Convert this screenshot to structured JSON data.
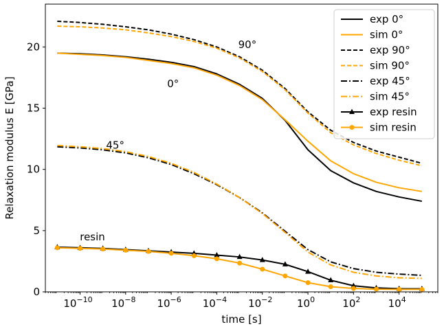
{
  "chart_data": {
    "type": "line",
    "xlabel": "time [s]",
    "ylabel": "Relaxation modulus E [GPa]",
    "x_scale": "log",
    "xlim": [
      3e-12,
      500000.0
    ],
    "ylim": [
      0,
      23.5
    ],
    "x_ticks": [
      {
        "value": 1e-10,
        "base": "10",
        "exp": "−10"
      },
      {
        "value": 1e-08,
        "base": "10",
        "exp": "−8"
      },
      {
        "value": 1e-06,
        "base": "10",
        "exp": "−6"
      },
      {
        "value": 0.0001,
        "base": "10",
        "exp": "−4"
      },
      {
        "value": 0.01,
        "base": "10",
        "exp": "−2"
      },
      {
        "value": 1,
        "base": "10",
        "exp": "0"
      },
      {
        "value": 100,
        "base": "10",
        "exp": "2"
      },
      {
        "value": 10000,
        "base": "10",
        "exp": "4"
      }
    ],
    "y_ticks": [
      0,
      5,
      10,
      15,
      20
    ],
    "grid": false,
    "legend_position": "top-right",
    "colors": {
      "exp": "#000000",
      "sim": "#FFA500"
    },
    "annotations": [
      {
        "text": "90°",
        "x": 0.0022,
        "y": 19.9
      },
      {
        "text": "0°",
        "x": 1.2e-06,
        "y": 16.7
      },
      {
        "text": "45°",
        "x": 3.5e-09,
        "y": 11.7
      },
      {
        "text": "resin",
        "x": 3.5e-10,
        "y": 4.2
      }
    ],
    "series": [
      {
        "name": "exp 0°",
        "color": "#000000",
        "dash": "solid",
        "marker": "none",
        "x": [
          1e-11,
          1e-10,
          1e-09,
          1e-08,
          1e-07,
          1e-06,
          1e-05,
          0.0001,
          0.001,
          0.01,
          0.1,
          1,
          10,
          100,
          1000,
          10000,
          100000
        ],
        "y": [
          19.5,
          19.45,
          19.35,
          19.2,
          19.0,
          18.75,
          18.4,
          17.8,
          16.95,
          15.8,
          14.0,
          11.6,
          9.9,
          8.9,
          8.2,
          7.75,
          7.4
        ]
      },
      {
        "name": "sim 0°",
        "color": "#FFA500",
        "dash": "solid",
        "marker": "none",
        "x": [
          1e-11,
          1e-10,
          1e-09,
          1e-08,
          1e-07,
          1e-06,
          1e-05,
          0.0001,
          0.001,
          0.01,
          0.1,
          1,
          10,
          100,
          1000,
          10000,
          100000
        ],
        "y": [
          19.5,
          19.4,
          19.3,
          19.15,
          18.9,
          18.65,
          18.3,
          17.7,
          16.85,
          15.7,
          14.05,
          12.3,
          10.7,
          9.65,
          8.95,
          8.5,
          8.2
        ]
      },
      {
        "name": "exp 90°",
        "color": "#000000",
        "dash": "dashed",
        "marker": "none",
        "x": [
          1e-11,
          1e-10,
          1e-09,
          1e-08,
          1e-07,
          1e-06,
          1e-05,
          0.0001,
          0.001,
          0.01,
          0.1,
          1,
          10,
          100,
          1000,
          10000,
          100000
        ],
        "y": [
          22.1,
          22.0,
          21.85,
          21.65,
          21.4,
          21.05,
          20.6,
          20.0,
          19.2,
          18.1,
          16.6,
          14.7,
          13.2,
          12.2,
          11.5,
          11.0,
          10.5
        ]
      },
      {
        "name": "sim 90°",
        "color": "#FFA500",
        "dash": "dashed",
        "marker": "none",
        "x": [
          1e-11,
          1e-10,
          1e-09,
          1e-08,
          1e-07,
          1e-06,
          1e-05,
          0.0001,
          0.001,
          0.01,
          0.1,
          1,
          10,
          100,
          1000,
          10000,
          100000
        ],
        "y": [
          21.7,
          21.65,
          21.55,
          21.4,
          21.15,
          20.85,
          20.45,
          19.9,
          19.1,
          18.0,
          16.5,
          14.6,
          13.0,
          12.0,
          11.3,
          10.75,
          10.3
        ]
      },
      {
        "name": "exp 45°",
        "color": "#000000",
        "dash": "dashdot",
        "marker": "none",
        "x": [
          1e-11,
          1e-10,
          1e-09,
          1e-08,
          1e-07,
          1e-06,
          1e-05,
          0.0001,
          0.001,
          0.01,
          0.1,
          1,
          10,
          100,
          1000,
          10000,
          100000
        ],
        "y": [
          11.85,
          11.75,
          11.6,
          11.35,
          10.95,
          10.4,
          9.65,
          8.75,
          7.7,
          6.45,
          4.95,
          3.45,
          2.45,
          1.9,
          1.6,
          1.45,
          1.35
        ]
      },
      {
        "name": "sim 45°",
        "color": "#FFA500",
        "dash": "dashdot",
        "marker": "none",
        "x": [
          1e-11,
          1e-10,
          1e-09,
          1e-08,
          1e-07,
          1e-06,
          1e-05,
          0.0001,
          0.001,
          0.01,
          0.1,
          1,
          10,
          100,
          1000,
          10000,
          100000
        ],
        "y": [
          11.95,
          11.85,
          11.7,
          11.45,
          11.05,
          10.5,
          9.75,
          8.8,
          7.7,
          6.4,
          4.85,
          3.25,
          2.2,
          1.6,
          1.3,
          1.15,
          1.1
        ]
      },
      {
        "name": "exp resin",
        "color": "#000000",
        "dash": "solid",
        "marker": "triangle",
        "x": [
          1e-11,
          1e-10,
          1e-09,
          1e-08,
          1e-07,
          1e-06,
          1e-05,
          0.0001,
          0.001,
          0.01,
          0.1,
          1,
          10,
          100,
          1000,
          10000,
          100000
        ],
        "y": [
          3.65,
          3.6,
          3.55,
          3.45,
          3.35,
          3.25,
          3.15,
          3.0,
          2.85,
          2.6,
          2.25,
          1.65,
          0.95,
          0.5,
          0.32,
          0.26,
          0.25
        ]
      },
      {
        "name": "sim resin",
        "color": "#FFA500",
        "dash": "solid",
        "marker": "circle",
        "x": [
          1e-11,
          1e-10,
          1e-09,
          1e-08,
          1e-07,
          1e-06,
          1e-05,
          0.0001,
          0.001,
          0.01,
          0.1,
          1,
          10,
          100,
          1000,
          10000,
          100000
        ],
        "y": [
          3.6,
          3.55,
          3.5,
          3.4,
          3.3,
          3.15,
          2.95,
          2.7,
          2.35,
          1.85,
          1.3,
          0.75,
          0.42,
          0.28,
          0.22,
          0.2,
          0.2
        ]
      }
    ]
  }
}
